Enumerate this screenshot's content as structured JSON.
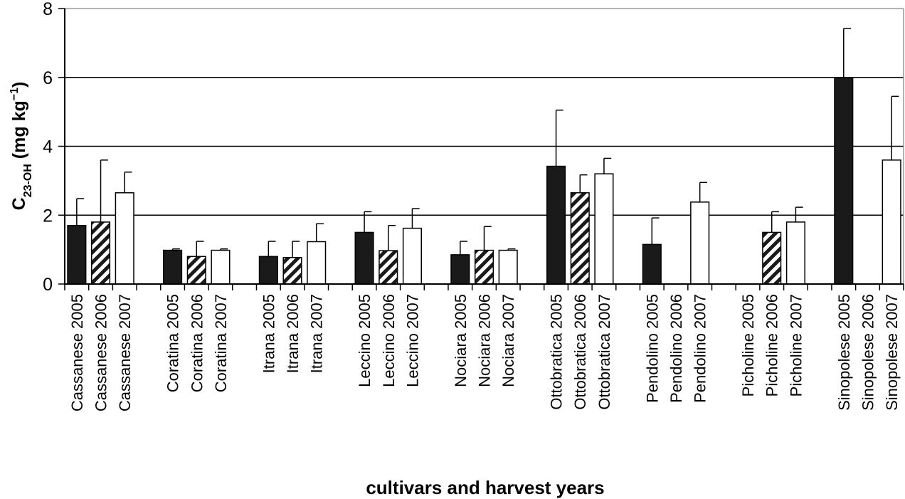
{
  "chart_data": {
    "type": "bar",
    "title": "",
    "xlabel": "cultivars and harvest years",
    "ylabel": {
      "main": "C",
      "sub": "23-OH",
      "unit_prefix": " (mg kg",
      "unit_sup": "−1",
      "unit_suffix": ")"
    },
    "ylim": [
      0,
      8
    ],
    "yticks": [
      0,
      2,
      4,
      6,
      8
    ],
    "grid": true,
    "legend": "none",
    "fills": {
      "2005": "#1a1a1a",
      "2006": "diagonal-stripes",
      "2007": "#ffffff"
    },
    "colors": {
      "bar_dark": "#1a1a1a",
      "stripe": "#1a1a1a",
      "axis": "#000000",
      "frame": "#999999"
    },
    "groups": [
      {
        "cultivar": "Cassanese",
        "bars": [
          {
            "label": "Cassanese 2005",
            "year": "2005",
            "value": 1.7,
            "error": 0.78
          },
          {
            "label": "Cassanese 2006",
            "year": "2006",
            "value": 1.8,
            "error": 1.8
          },
          {
            "label": "Cassanese 2007",
            "year": "2007",
            "value": 2.65,
            "error": 0.6
          }
        ]
      },
      {
        "cultivar": "Coratina",
        "bars": [
          {
            "label": "Coratina 2005",
            "year": "2005",
            "value": 0.98,
            "error": 0.04
          },
          {
            "label": "Coratina 2006",
            "year": "2006",
            "value": 0.8,
            "error": 0.44
          },
          {
            "label": "Coratina 2007",
            "year": "2007",
            "value": 0.98,
            "error": 0.04
          }
        ]
      },
      {
        "cultivar": "Itrana",
        "bars": [
          {
            "label": "Itrana 2005",
            "year": "2005",
            "value": 0.8,
            "error": 0.44
          },
          {
            "label": "Itrana 2006",
            "year": "2006",
            "value": 0.77,
            "error": 0.47
          },
          {
            "label": "Itrana 2007",
            "year": "2007",
            "value": 1.23,
            "error": 0.52
          }
        ]
      },
      {
        "cultivar": "Leccino",
        "bars": [
          {
            "label": "Leccino 2005",
            "year": "2005",
            "value": 1.5,
            "error": 0.6
          },
          {
            "label": "Leccino 2006",
            "year": "2006",
            "value": 0.97,
            "error": 0.73
          },
          {
            "label": "Leccino 2007",
            "year": "2007",
            "value": 1.62,
            "error": 0.57
          }
        ]
      },
      {
        "cultivar": "Nociara",
        "bars": [
          {
            "label": "Nociara 2005",
            "year": "2005",
            "value": 0.85,
            "error": 0.39
          },
          {
            "label": "Nociara 2006",
            "year": "2006",
            "value": 0.98,
            "error": 0.69
          },
          {
            "label": "Nociara 2007",
            "year": "2007",
            "value": 0.98,
            "error": 0.04
          }
        ]
      },
      {
        "cultivar": "Ottobratica",
        "bars": [
          {
            "label": "Ottobratica 2005",
            "year": "2005",
            "value": 3.42,
            "error": 1.63
          },
          {
            "label": "Ottobratica 2006",
            "year": "2006",
            "value": 2.65,
            "error": 0.52
          },
          {
            "label": "Ottobratica 2007",
            "year": "2007",
            "value": 3.2,
            "error": 0.45
          }
        ]
      },
      {
        "cultivar": "Pendolino",
        "bars": [
          {
            "label": "Pendolino 2005",
            "year": "2005",
            "value": 1.15,
            "error": 0.77
          },
          {
            "label": "Pendolino 2006",
            "year": "2006",
            "value": 0,
            "error": 0
          },
          {
            "label": "Pendolino 2007",
            "year": "2007",
            "value": 2.38,
            "error": 0.57
          }
        ]
      },
      {
        "cultivar": "Picholine",
        "bars": [
          {
            "label": "Picholine 2005",
            "year": "2005",
            "value": 0,
            "error": 0
          },
          {
            "label": "Picholine 2006",
            "year": "2006",
            "value": 1.5,
            "error": 0.6
          },
          {
            "label": "Picholine 2007",
            "year": "2007",
            "value": 1.8,
            "error": 0.43
          }
        ]
      },
      {
        "cultivar": "Sinopolese",
        "bars": [
          {
            "label": "Sinopolese 2005",
            "year": "2005",
            "value": 6.0,
            "error": 1.42
          },
          {
            "label": "Sinopolese 2006",
            "year": "2006",
            "value": 0,
            "error": 0
          },
          {
            "label": "Sinopolese 2007",
            "year": "2007",
            "value": 3.6,
            "error": 1.85
          }
        ]
      }
    ]
  }
}
